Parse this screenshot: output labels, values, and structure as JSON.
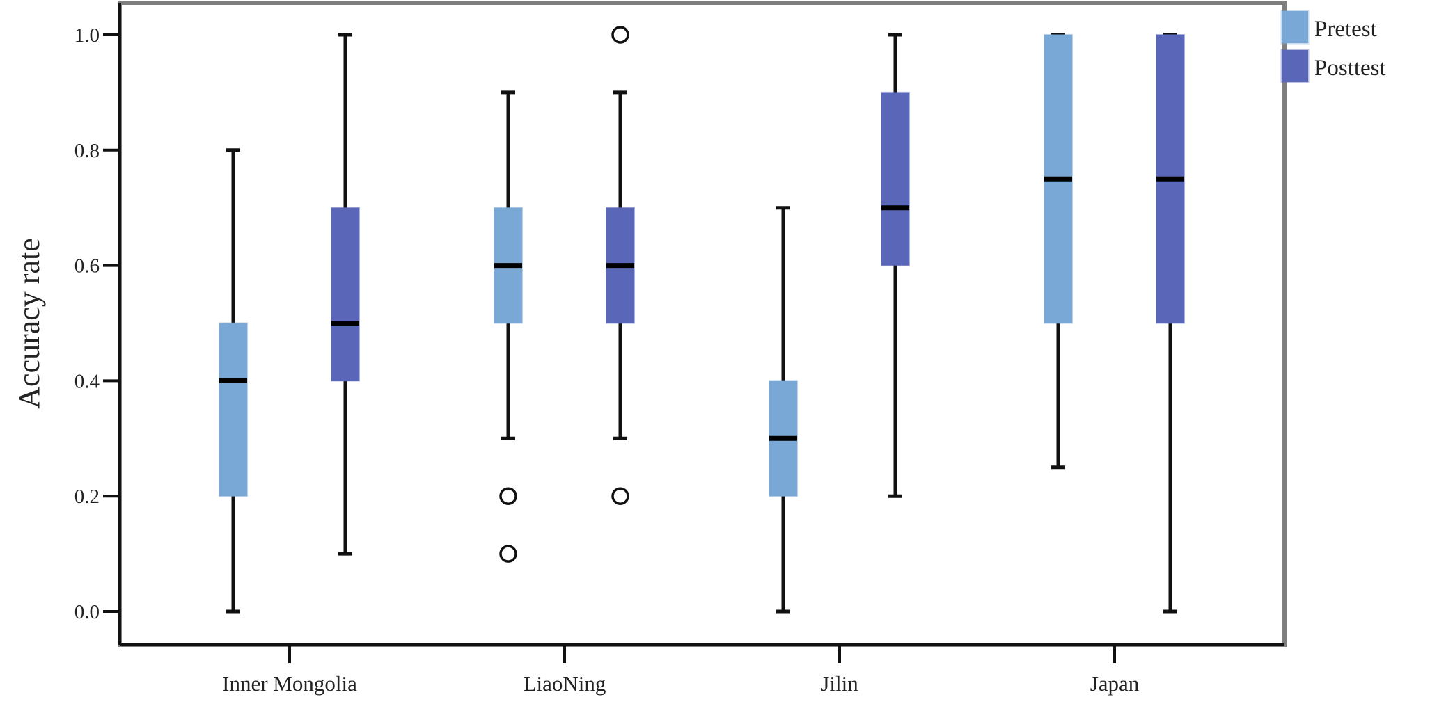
{
  "chart_data": {
    "type": "boxplot",
    "title": "",
    "xlabel": "",
    "ylabel": "Accuracy rate",
    "ylim": [
      0,
      1.0
    ],
    "yticks": [
      "0.0",
      "0.2",
      "0.4",
      "0.6",
      "0.8",
      "1.0"
    ],
    "categories": [
      "Inner Mongolia",
      "LiaoNing",
      "Jilin",
      "Japan"
    ],
    "legend": {
      "position": "top-right outside"
    },
    "series": [
      {
        "name": "Pretest",
        "color": "#7aa8d6",
        "boxes": [
          {
            "min": 0.0,
            "q1": 0.2,
            "median": 0.4,
            "q3": 0.5,
            "max": 0.8,
            "outliers": []
          },
          {
            "min": 0.3,
            "q1": 0.5,
            "median": 0.6,
            "q3": 0.7,
            "max": 0.9,
            "outliers": [
              0.2,
              0.1
            ]
          },
          {
            "min": 0.0,
            "q1": 0.2,
            "median": 0.3,
            "q3": 0.4,
            "max": 0.7,
            "outliers": []
          },
          {
            "min": 0.25,
            "q1": 0.5,
            "median": 0.75,
            "q3": 1.0,
            "max": 1.0,
            "outliers": []
          }
        ]
      },
      {
        "name": "Posttest",
        "color": "#5a66b8",
        "boxes": [
          {
            "min": 0.1,
            "q1": 0.4,
            "median": 0.5,
            "q3": 0.7,
            "max": 1.0,
            "outliers": []
          },
          {
            "min": 0.3,
            "q1": 0.5,
            "median": 0.6,
            "q3": 0.7,
            "max": 0.9,
            "outliers": [
              1.0,
              0.2
            ]
          },
          {
            "min": 0.2,
            "q1": 0.6,
            "median": 0.7,
            "q3": 0.9,
            "max": 1.0,
            "outliers": []
          },
          {
            "min": 0.0,
            "q1": 0.5,
            "median": 0.75,
            "q3": 1.0,
            "max": 1.0,
            "outliers": []
          }
        ]
      }
    ]
  }
}
